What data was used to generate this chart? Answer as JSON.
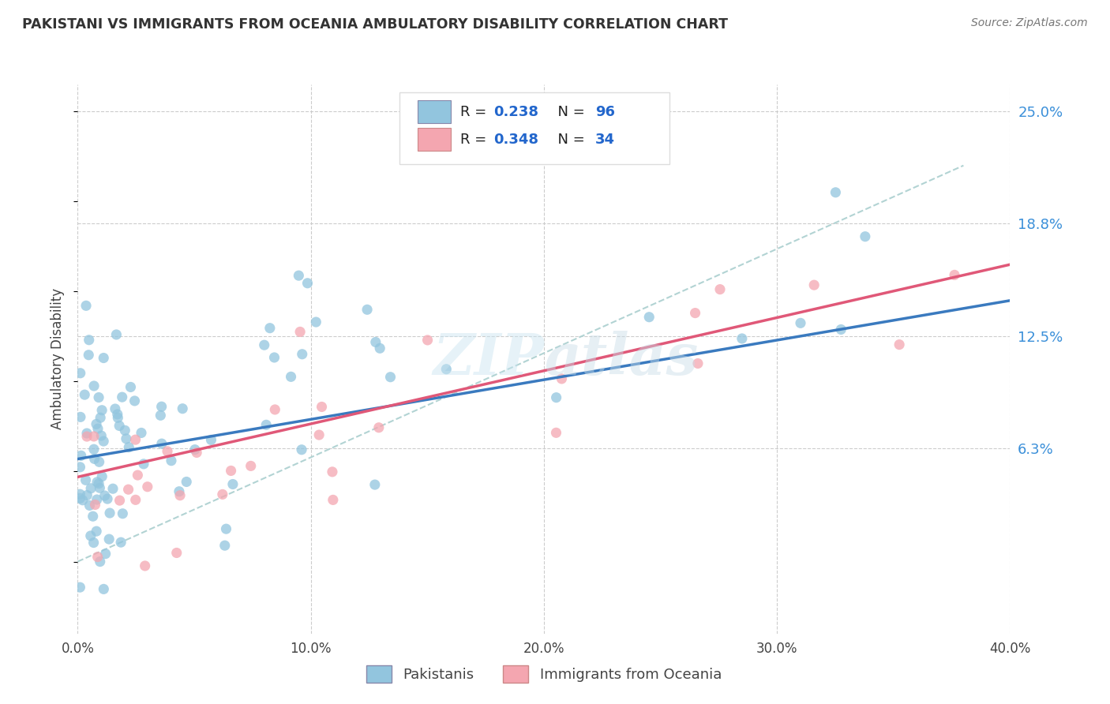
{
  "title": "PAKISTANI VS IMMIGRANTS FROM OCEANIA AMBULATORY DISABILITY CORRELATION CHART",
  "source": "Source: ZipAtlas.com",
  "ylabel": "Ambulatory Disability",
  "xmin": 0.0,
  "xmax": 0.4,
  "ymin": 0.0,
  "ymax": 0.25,
  "xtick_values": [
    0.0,
    0.1,
    0.2,
    0.3,
    0.4
  ],
  "ytick_values": [
    0.063,
    0.125,
    0.188,
    0.25
  ],
  "ytick_labels": [
    "6.3%",
    "12.5%",
    "18.8%",
    "25.0%"
  ],
  "blue_R": 0.238,
  "blue_N": 96,
  "pink_R": 0.348,
  "pink_N": 34,
  "blue_color": "#92c5de",
  "pink_color": "#f4a6b0",
  "blue_line_color": "#3a7abf",
  "pink_line_color": "#e05878",
  "dashed_line_color": "#aacfcf",
  "watermark_zip": "ZIP",
  "watermark_atlas": "atlas",
  "background_color": "#ffffff",
  "legend_text_color": "#0066cc",
  "legend_label_color": "#333333"
}
